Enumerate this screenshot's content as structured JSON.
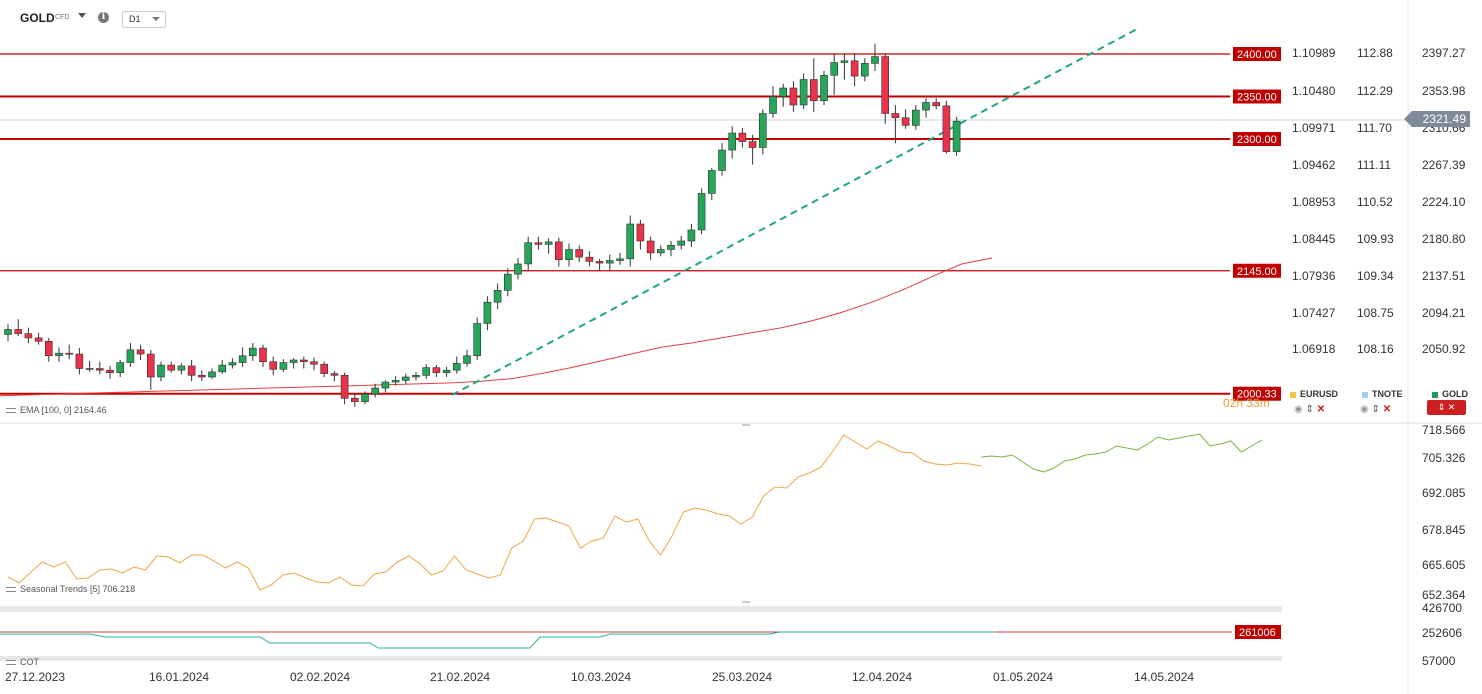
{
  "header": {
    "symbol": "GOLD",
    "symbol_sub": "CFD",
    "timeframe": "D1"
  },
  "current_price": "2321.49",
  "timer": "02h 33m",
  "levels": [
    {
      "label": "2400.00",
      "value": 2400
    },
    {
      "label": "2350.00",
      "value": 2350
    },
    {
      "label": "2300.00",
      "value": 2300
    },
    {
      "label": "2145.00",
      "value": 2145
    },
    {
      "label": "2000.33",
      "value": 2000.33
    }
  ],
  "axis_eurusd": [
    "1.10989",
    "1.10480",
    "1.09971",
    "1.09462",
    "1.08953",
    "1.08445",
    "1.07936",
    "1.07427",
    "1.06918"
  ],
  "axis_tnote": [
    "112.88",
    "112.29",
    "111.70",
    "111.11",
    "110.52",
    "109.93",
    "109.34",
    "108.75",
    "108.16"
  ],
  "axis_gold": [
    "2397.27",
    "2353.98",
    "2310.66",
    "2267.39",
    "2224.10",
    "2180.80",
    "2137.51",
    "2094.21",
    "2050.92"
  ],
  "axis_seasonal": [
    "718.566",
    "705.326",
    "692.085",
    "678.845",
    "665.605",
    "652.364"
  ],
  "axis_cot": [
    "426700",
    "252606",
    "57000"
  ],
  "dates": [
    "27.12.2023",
    "16.01.2024",
    "02.02.2024",
    "21.02.2024",
    "10.03.2024",
    "25.03.2024",
    "12.04.2024",
    "01.05.2024",
    "14.05.2024"
  ],
  "ema_label": "EMA [100, 0] 2164.46",
  "seasonal_label": "Seasonal  Trends  [5] 706.218",
  "cot_label": "COT",
  "cot_value": "261006",
  "legend_items": [
    {
      "name": "EURUSD",
      "color": "#f3c542"
    },
    {
      "name": "TNOTE",
      "color": "#9fd1ee"
    },
    {
      "name": "GOLD",
      "color": "#1f9c5a"
    }
  ],
  "colors": {
    "up": "#26a65b",
    "down": "#e8334a",
    "level": "#c00000",
    "trend": "#1fa87a",
    "ema": "#e04040",
    "seasonal_past": "#f0a64a",
    "seasonal_future": "#7cb342",
    "cot_line": "#2bb59a"
  },
  "chart_data": {
    "type": "candlestick",
    "ohlc": [
      [
        2070,
        2082,
        2062,
        2076
      ],
      [
        2076,
        2088,
        2068,
        2071
      ],
      [
        2071,
        2078,
        2060,
        2066
      ],
      [
        2066,
        2072,
        2058,
        2062
      ],
      [
        2062,
        2066,
        2038,
        2045
      ],
      [
        2045,
        2055,
        2038,
        2048
      ],
      [
        2048,
        2058,
        2041,
        2047
      ],
      [
        2047,
        2054,
        2023,
        2030
      ],
      [
        2030,
        2039,
        2026,
        2030
      ],
      [
        2030,
        2038,
        2023,
        2028
      ],
      [
        2028,
        2033,
        2018,
        2025
      ],
      [
        2025,
        2040,
        2020,
        2037
      ],
      [
        2037,
        2060,
        2032,
        2052
      ],
      [
        2052,
        2058,
        2040,
        2047
      ],
      [
        2047,
        2052,
        2005,
        2020
      ],
      [
        2020,
        2038,
        2015,
        2034
      ],
      [
        2034,
        2038,
        2025,
        2028
      ],
      [
        2028,
        2036,
        2023,
        2033
      ],
      [
        2033,
        2040,
        2015,
        2022
      ],
      [
        2022,
        2028,
        2015,
        2020
      ],
      [
        2020,
        2030,
        2018,
        2026
      ],
      [
        2026,
        2040,
        2024,
        2034
      ],
      [
        2034,
        2042,
        2030,
        2037
      ],
      [
        2037,
        2055,
        2032,
        2045
      ],
      [
        2045,
        2060,
        2039,
        2054
      ],
      [
        2054,
        2058,
        2032,
        2038
      ],
      [
        2038,
        2044,
        2022,
        2029
      ],
      [
        2029,
        2041,
        2026,
        2037
      ],
      [
        2037,
        2042,
        2030,
        2040
      ],
      [
        2040,
        2044,
        2030,
        2038
      ],
      [
        2038,
        2043,
        2028,
        2035
      ],
      [
        2035,
        2038,
        2020,
        2024
      ],
      [
        2024,
        2027,
        2015,
        2022
      ],
      [
        2022,
        2025,
        1988,
        1995
      ],
      [
        1995,
        2000,
        1985,
        1991
      ],
      [
        1991,
        2003,
        1988,
        2000
      ],
      [
        2000,
        2012,
        1996,
        2007
      ],
      [
        2007,
        2016,
        2002,
        2014
      ],
      [
        2014,
        2021,
        2010,
        2016
      ],
      [
        2016,
        2024,
        2012,
        2020
      ],
      [
        2020,
        2026,
        2016,
        2022
      ],
      [
        2022,
        2035,
        2018,
        2031
      ],
      [
        2031,
        2034,
        2020,
        2025
      ],
      [
        2025,
        2032,
        2020,
        2028
      ],
      [
        2028,
        2044,
        2024,
        2036
      ],
      [
        2036,
        2052,
        2032,
        2045
      ],
      [
        2045,
        2090,
        2040,
        2083
      ],
      [
        2083,
        2115,
        2075,
        2108
      ],
      [
        2108,
        2130,
        2100,
        2122
      ],
      [
        2122,
        2148,
        2115,
        2141
      ],
      [
        2141,
        2160,
        2135,
        2153
      ],
      [
        2153,
        2185,
        2145,
        2178
      ],
      [
        2178,
        2185,
        2170,
        2176
      ],
      [
        2176,
        2183,
        2165,
        2179
      ],
      [
        2179,
        2184,
        2150,
        2158
      ],
      [
        2158,
        2177,
        2150,
        2170
      ],
      [
        2170,
        2175,
        2155,
        2161
      ],
      [
        2161,
        2168,
        2150,
        2156
      ],
      [
        2156,
        2159,
        2145,
        2154
      ],
      [
        2154,
        2164,
        2145,
        2157
      ],
      [
        2157,
        2166,
        2152,
        2159
      ],
      [
        2159,
        2210,
        2150,
        2200
      ],
      [
        2200,
        2205,
        2170,
        2180
      ],
      [
        2180,
        2185,
        2158,
        2166
      ],
      [
        2166,
        2175,
        2162,
        2170
      ],
      [
        2170,
        2180,
        2162,
        2175
      ],
      [
        2175,
        2186,
        2170,
        2180
      ],
      [
        2180,
        2200,
        2173,
        2193
      ],
      [
        2193,
        2242,
        2188,
        2236
      ],
      [
        2236,
        2266,
        2228,
        2263
      ],
      [
        2263,
        2295,
        2257,
        2287
      ],
      [
        2287,
        2315,
        2277,
        2307
      ],
      [
        2307,
        2313,
        2290,
        2297
      ],
      [
        2297,
        2305,
        2270,
        2290
      ],
      [
        2290,
        2335,
        2282,
        2330
      ],
      [
        2330,
        2362,
        2325,
        2350
      ],
      [
        2350,
        2365,
        2338,
        2360
      ],
      [
        2360,
        2368,
        2332,
        2340
      ],
      [
        2340,
        2377,
        2335,
        2370
      ],
      [
        2370,
        2395,
        2332,
        2345
      ],
      [
        2345,
        2380,
        2340,
        2375
      ],
      [
        2375,
        2401,
        2352,
        2390
      ],
      [
        2390,
        2400,
        2370,
        2392
      ],
      [
        2392,
        2401,
        2362,
        2374
      ],
      [
        2374,
        2395,
        2368,
        2389
      ],
      [
        2389,
        2412,
        2380,
        2397
      ],
      [
        2397,
        2401,
        2318,
        2330
      ],
      [
        2330,
        2340,
        2295,
        2325
      ],
      [
        2325,
        2335,
        2312,
        2316
      ],
      [
        2316,
        2340,
        2311,
        2334
      ],
      [
        2334,
        2348,
        2325,
        2343
      ],
      [
        2343,
        2348,
        2335,
        2339
      ],
      [
        2339,
        2345,
        2283,
        2285
      ],
      [
        2285,
        2326,
        2280,
        2321
      ]
    ],
    "ema": [
      1998,
      1999,
      2000,
      2001,
      2002,
      2003,
      2004,
      2005,
      2006,
      2007,
      2008,
      2009,
      2010,
      2011,
      2012,
      2013,
      2015,
      2018,
      2024,
      2031,
      2039,
      2047,
      2055,
      2060,
      2066,
      2072,
      2078,
      2086,
      2096,
      2108,
      2122,
      2138,
      2153,
      2160
    ]
  }
}
